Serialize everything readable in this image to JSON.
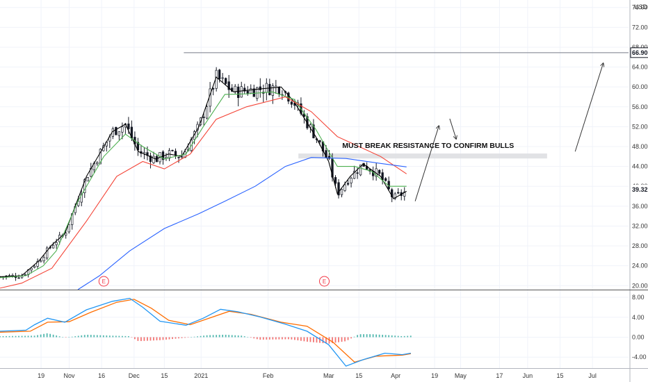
{
  "chart_data": {
    "type": "candlestick",
    "currency_label": "USD",
    "price_axis": {
      "ticks": [
        20,
        24,
        28,
        32,
        36,
        40,
        44,
        48,
        52,
        56,
        60,
        64,
        68,
        72,
        76
      ],
      "tick_labels": [
        "20.00",
        "24.00",
        "28.00",
        "32.00",
        "36.00",
        "40.00",
        "44.00",
        "48.00",
        "52.00",
        "56.00",
        "60.00",
        "64.00",
        "68.00",
        "72.00",
        "76.00"
      ],
      "range": [
        19.2,
        77.5
      ]
    },
    "time_axis": {
      "labels": [
        "19",
        "Nov",
        "16",
        "Dec",
        "15",
        "2021",
        "Feb",
        "Mar",
        "15",
        "Apr",
        "19",
        "May",
        "17",
        "Jun",
        "15",
        "Jul"
      ],
      "label_days": [
        19,
        32,
        47,
        62,
        76,
        93,
        124,
        152,
        166,
        183,
        201,
        213,
        231,
        244,
        259,
        274
      ]
    },
    "price_badges": [
      {
        "value": 66.9,
        "label": "66.90",
        "color": "#131722"
      },
      {
        "value": 39.32,
        "label": "39.32",
        "color": "#131722"
      }
    ],
    "resistance_line": {
      "value": 66.9,
      "start_day": 85
    },
    "zone": {
      "low": 45.6,
      "high": 46.6,
      "start_day": 138,
      "end_day": 253
    },
    "annotation": "MUST BREAK RESISTANCE TO CONFIRM BULLS",
    "earnings_markers": [
      {
        "day": 48,
        "label": "E"
      },
      {
        "day": 150,
        "label": "E"
      }
    ],
    "moving_averages": [
      {
        "color": "#000000",
        "points": [
          [
            0,
            21.8
          ],
          [
            10,
            22
          ],
          [
            18,
            25
          ],
          [
            24,
            28.2
          ],
          [
            30,
            30.5
          ],
          [
            40,
            42
          ],
          [
            52,
            51
          ],
          [
            58,
            52.5
          ],
          [
            64,
            47
          ],
          [
            72,
            45.5
          ],
          [
            78,
            46.5
          ],
          [
            84,
            46
          ],
          [
            92,
            52
          ],
          [
            100,
            62
          ],
          [
            108,
            59
          ],
          [
            118,
            59.5
          ],
          [
            130,
            60
          ],
          [
            136,
            57
          ],
          [
            146,
            50
          ],
          [
            152,
            45
          ],
          [
            156,
            38.5
          ],
          [
            162,
            42
          ],
          [
            168,
            44.5
          ],
          [
            176,
            42
          ],
          [
            182,
            37.5
          ],
          [
            188,
            39
          ]
        ]
      },
      {
        "color": "#4caf50",
        "points": [
          [
            0,
            21.6
          ],
          [
            12,
            22
          ],
          [
            20,
            24
          ],
          [
            26,
            27
          ],
          [
            36,
            37
          ],
          [
            48,
            46
          ],
          [
            58,
            50.5
          ],
          [
            66,
            48
          ],
          [
            76,
            45.5
          ],
          [
            86,
            46.5
          ],
          [
            94,
            52
          ],
          [
            104,
            58.5
          ],
          [
            114,
            58.6
          ],
          [
            126,
            59
          ],
          [
            136,
            57.5
          ],
          [
            146,
            51.5
          ],
          [
            156,
            44
          ],
          [
            164,
            44
          ],
          [
            172,
            43
          ],
          [
            180,
            40
          ],
          [
            188,
            40
          ]
        ]
      },
      {
        "color": "#f44336",
        "points": [
          [
            0,
            19.5
          ],
          [
            10,
            20.5
          ],
          [
            24,
            23.5
          ],
          [
            40,
            33
          ],
          [
            54,
            42
          ],
          [
            66,
            45
          ],
          [
            76,
            43.5
          ],
          [
            88,
            46.5
          ],
          [
            100,
            53.5
          ],
          [
            114,
            56
          ],
          [
            132,
            58
          ],
          [
            144,
            55
          ],
          [
            156,
            50
          ],
          [
            166,
            48
          ],
          [
            176,
            46
          ],
          [
            188,
            42.5
          ]
        ]
      },
      {
        "color": "#2962ff",
        "points": [
          [
            36,
            19.2
          ],
          [
            46,
            22
          ],
          [
            60,
            27
          ],
          [
            76,
            31.5
          ],
          [
            92,
            34.5
          ],
          [
            104,
            37
          ],
          [
            118,
            40
          ],
          [
            132,
            44
          ],
          [
            144,
            45.8
          ],
          [
            160,
            45.6
          ],
          [
            176,
            44.6
          ],
          [
            188,
            43.9
          ]
        ]
      }
    ],
    "arrows": [
      {
        "from": [
          192,
          37
        ],
        "to": [
          203,
          52.2
        ]
      },
      {
        "from": [
          208,
          53.6
        ],
        "to": [
          211,
          49.5
        ]
      },
      {
        "from": [
          266,
          47
        ],
        "to": [
          279,
          64.8
        ]
      }
    ],
    "macd": {
      "ticks": [
        -4,
        0,
        4,
        8
      ],
      "tick_labels": [
        "-4.00",
        "0.00",
        "4.00",
        "8.00"
      ],
      "range": [
        -6.2,
        9.4
      ],
      "macd_color": "#2196f3",
      "signal_color": "#ff6d00",
      "macd_line": [
        [
          0,
          1.2
        ],
        [
          12,
          1.4
        ],
        [
          16,
          2.5
        ],
        [
          22,
          3.8
        ],
        [
          30,
          3.0
        ],
        [
          40,
          5.5
        ],
        [
          52,
          7.2
        ],
        [
          60,
          7.8
        ],
        [
          66,
          6.0
        ],
        [
          74,
          3.2
        ],
        [
          86,
          2.4
        ],
        [
          94,
          3.8
        ],
        [
          102,
          5.6
        ],
        [
          110,
          5.1
        ],
        [
          120,
          4.1
        ],
        [
          132,
          2.6
        ],
        [
          142,
          1.2
        ],
        [
          152,
          -1.5
        ],
        [
          160,
          -5.8
        ],
        [
          168,
          -4.5
        ],
        [
          178,
          -3.2
        ],
        [
          186,
          -3.5
        ],
        [
          190,
          -3.2
        ]
      ],
      "signal_line": [
        [
          0,
          1.0
        ],
        [
          14,
          1.2
        ],
        [
          22,
          3.0
        ],
        [
          32,
          3.1
        ],
        [
          42,
          5.0
        ],
        [
          54,
          7.0
        ],
        [
          62,
          7.6
        ],
        [
          70,
          5.8
        ],
        [
          78,
          3.4
        ],
        [
          88,
          2.5
        ],
        [
          98,
          4.0
        ],
        [
          106,
          5.2
        ],
        [
          116,
          4.6
        ],
        [
          130,
          3.0
        ],
        [
          142,
          2.2
        ],
        [
          154,
          -1.0
        ],
        [
          164,
          -5.0
        ],
        [
          174,
          -3.8
        ],
        [
          186,
          -3.6
        ],
        [
          190,
          -3.3
        ]
      ],
      "histogram_points": [
        [
          0,
          0.2
        ],
        [
          16,
          0.3
        ],
        [
          22,
          0.8
        ],
        [
          30,
          -0.1
        ],
        [
          40,
          0.5
        ],
        [
          52,
          0.3
        ],
        [
          60,
          0.2
        ],
        [
          64,
          -0.8
        ],
        [
          74,
          -0.6
        ],
        [
          86,
          -0.1
        ],
        [
          96,
          0.4
        ],
        [
          104,
          0.5
        ],
        [
          112,
          0.3
        ],
        [
          120,
          -0.5
        ],
        [
          134,
          -0.4
        ],
        [
          142,
          -0.9
        ],
        [
          152,
          -1.3
        ],
        [
          160,
          -0.8
        ],
        [
          166,
          0.6
        ],
        [
          172,
          0.6
        ],
        [
          180,
          0.4
        ],
        [
          186,
          0.2
        ],
        [
          190,
          0.3
        ]
      ]
    }
  }
}
